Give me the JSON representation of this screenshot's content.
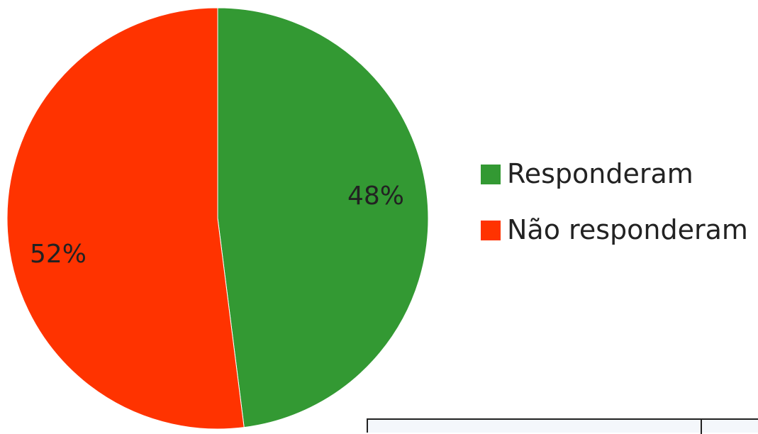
{
  "chart_data": {
    "type": "pie",
    "title": "",
    "slices": [
      {
        "label": "Responderam",
        "value": 48,
        "display": "48%",
        "color": "#339933"
      },
      {
        "label": "Não responderam",
        "value": 52,
        "display": "52%",
        "color": "#ff3300"
      }
    ],
    "legend": {
      "placement": "right",
      "entries": [
        "Responderam",
        "Não responderam"
      ]
    },
    "start_angle_deg": 0,
    "direction": "clockwise"
  }
}
